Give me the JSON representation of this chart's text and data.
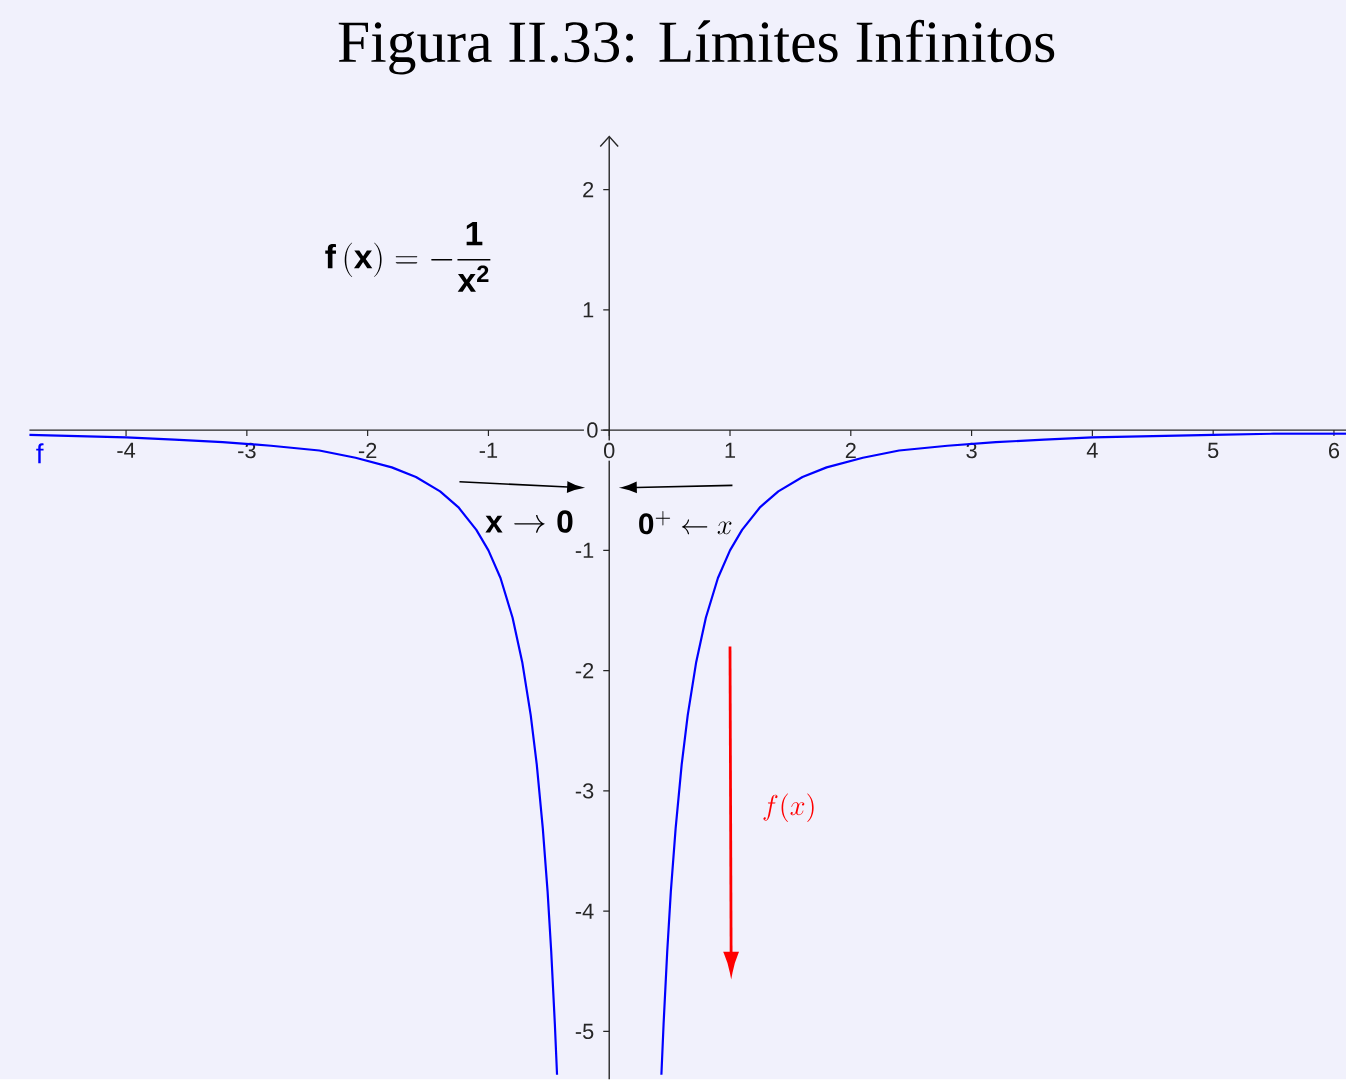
{
  "chart_data": {
    "type": "line",
    "title": "Figura II.33: Límites Infinitos",
    "annotations": [
      "\\mathbf{f\\,(x)} = -\\frac{\\mathbf{1}}{\\mathbf{x^{2}}}",
      "\\mathbf{x} \\rightarrow \\mathbf{0}",
      "\\mathbf{0}^{+} \\leftarrow x",
      "f(x)"
    ],
    "x": [
      -4.8,
      -4.4,
      -4,
      -3.6,
      -3.2,
      -2.8,
      -2.4,
      -2.1,
      -1.8,
      -1.6,
      -1.4,
      -1.25,
      -1.1,
      -1,
      -0.9,
      -0.8,
      -0.72,
      -0.65,
      -0.6,
      -0.55,
      -0.51,
      -0.48,
      -0.45,
      -0.432,
      0,
      0.432,
      0.45,
      0.48,
      0.51,
      0.55,
      0.6,
      0.65,
      0.72,
      0.8,
      0.9,
      1,
      1.1,
      1.25,
      1.4,
      1.6,
      1.8,
      2.1,
      2.4,
      2.8,
      3.2,
      3.6,
      4,
      4.5,
      5,
      5.5,
      6.1
    ],
    "series": [
      {
        "name": "f",
        "color": "#0000ff",
        "values": [
          -0.04,
          -0.05,
          -0.06,
          -0.08,
          -0.1,
          -0.13,
          -0.17,
          -0.23,
          -0.31,
          -0.39,
          -0.51,
          -0.64,
          -0.83,
          -1,
          -1.23,
          -1.56,
          -1.93,
          -2.37,
          -2.78,
          -3.31,
          -3.84,
          -4.34,
          -4.94,
          -5.36,
          null,
          -5.36,
          -4.94,
          -4.34,
          -3.84,
          -3.31,
          -2.78,
          -2.37,
          -1.93,
          -1.56,
          -1.23,
          -1,
          -0.83,
          -0.64,
          -0.51,
          -0.39,
          -0.31,
          -0.23,
          -0.17,
          -0.13,
          -0.1,
          -0.08,
          -0.06,
          -0.05,
          -0.04,
          -0.03,
          -0.03
        ]
      }
    ],
    "xlim": [
      -4.8,
      6.1
    ],
    "ylim": [
      -5.4,
      2.45
    ],
    "xticks": [
      -4,
      -3,
      -2,
      -1,
      0,
      1,
      2,
      3,
      4,
      5,
      6
    ],
    "yticks": [
      -5,
      -4,
      -3,
      -2,
      -1,
      0,
      1,
      2
    ],
    "line_style": "solid"
  }
}
